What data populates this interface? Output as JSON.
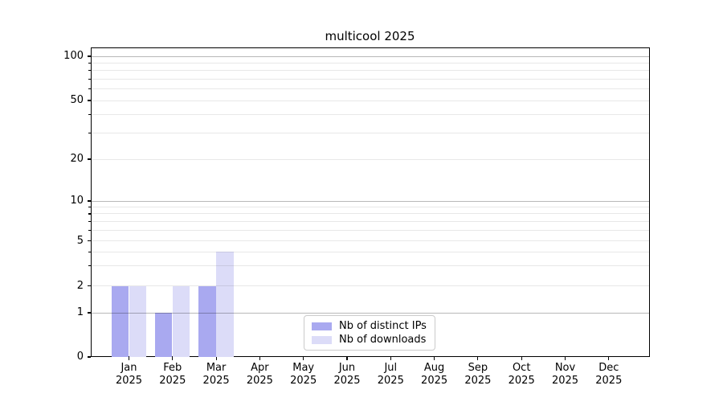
{
  "title": "multicool 2025",
  "chart_data": {
    "type": "bar",
    "title": "multicool 2025",
    "categories": [
      "Jan",
      "Feb",
      "Mar",
      "Apr",
      "May",
      "Jun",
      "Jul",
      "Aug",
      "Sep",
      "Oct",
      "Nov",
      "Dec"
    ],
    "x_sub_label": "2025",
    "series": [
      {
        "name": "Nb of distinct IPs",
        "color": "#a9a9f0",
        "values": [
          2,
          1,
          2,
          0,
          0,
          0,
          0,
          0,
          0,
          0,
          0,
          0
        ]
      },
      {
        "name": "Nb of downloads",
        "color": "#dcdcf8",
        "values": [
          2,
          2,
          4,
          0,
          0,
          0,
          0,
          0,
          0,
          0,
          0,
          0
        ]
      }
    ],
    "y_ticks": [
      0,
      1,
      2,
      5,
      10,
      20,
      50,
      100
    ],
    "y_scale": "symlog",
    "ylim": [
      0,
      113
    ],
    "grid": true,
    "legend_position": "lower center",
    "colors": {
      "distinct_ips": "#a9a9f0",
      "downloads": "#dcdcf8",
      "major_grid": "rgba(0,0,0,0.28)",
      "minor_grid": "rgba(0,0,0,0.09)"
    }
  }
}
